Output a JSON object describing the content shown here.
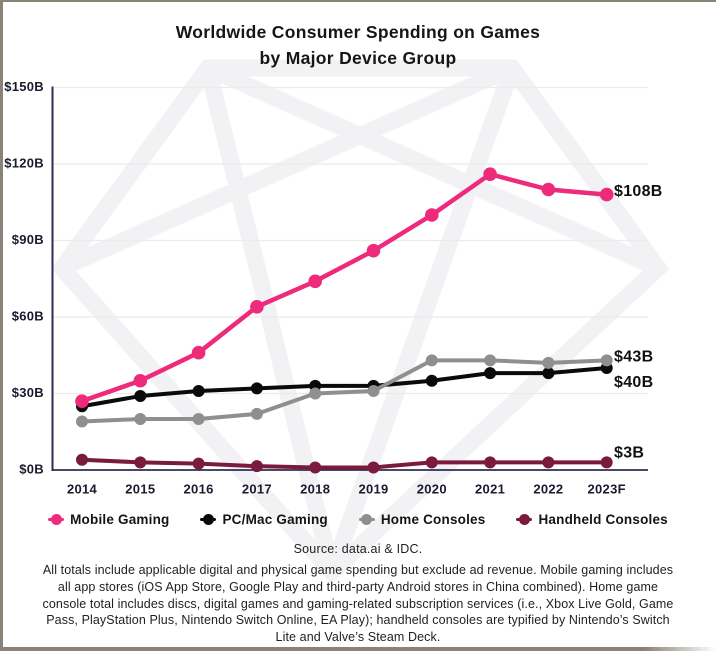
{
  "title": {
    "line1": "Worldwide Consumer Spending on Games",
    "line2": "by Major Device Group"
  },
  "chart_data": {
    "type": "line",
    "x": [
      "2014",
      "2015",
      "2016",
      "2017",
      "2018",
      "2019",
      "2020",
      "2021",
      "2022",
      "2023F"
    ],
    "series": [
      {
        "name": "Mobile Gaming",
        "color": "#EE2A7B",
        "values": [
          27,
          35,
          46,
          64,
          74,
          86,
          100,
          116,
          110,
          108
        ],
        "end_label": "$108B"
      },
      {
        "name": "PC/Mac Gaming",
        "color": "#0A0A0A",
        "values": [
          25,
          29,
          31,
          32,
          33,
          33,
          35,
          38,
          38,
          40
        ],
        "end_label": "$40B"
      },
      {
        "name": "Home Consoles",
        "color": "#8F8F8F",
        "values": [
          19,
          20,
          20,
          22,
          30,
          31,
          43,
          43,
          42,
          43
        ],
        "end_label": "$43B"
      },
      {
        "name": "Handheld Consoles",
        "color": "#7A1B3D",
        "values": [
          4,
          3,
          2.5,
          1.5,
          1,
          1,
          3,
          3,
          3,
          3
        ],
        "end_label": "$3B"
      }
    ],
    "y_ticks": [
      "$0B",
      "$30B",
      "$60B",
      "$90B",
      "$120B",
      "$150B"
    ],
    "ylim": [
      0,
      150
    ],
    "grid": true,
    "legend_position": "bottom",
    "colors": {
      "axis": "#322B52",
      "gridline": "#EBEBEB",
      "tick_text": "#1B1B2F",
      "end_label_text": "#111111",
      "watermark": "#F2F1F3"
    }
  },
  "icons": {
    "watermark": "dataai-gem-outline"
  },
  "source": "Source: data.ai & IDC.",
  "footnote": "All totals include applicable digital and physical game spending but exclude ad revenue. Mobile gaming includes all app stores (iOS App Store, Google Play and third-party Android stores in China combined). Home game console total includes discs, digital games and gaming-related subscription services (i.e., Xbox Live Gold, Game Pass, PlayStation Plus, Nintendo Switch Online, EA Play); handheld consoles are typified by Nintendo’s Switch Lite and Valve’s Steam Deck."
}
